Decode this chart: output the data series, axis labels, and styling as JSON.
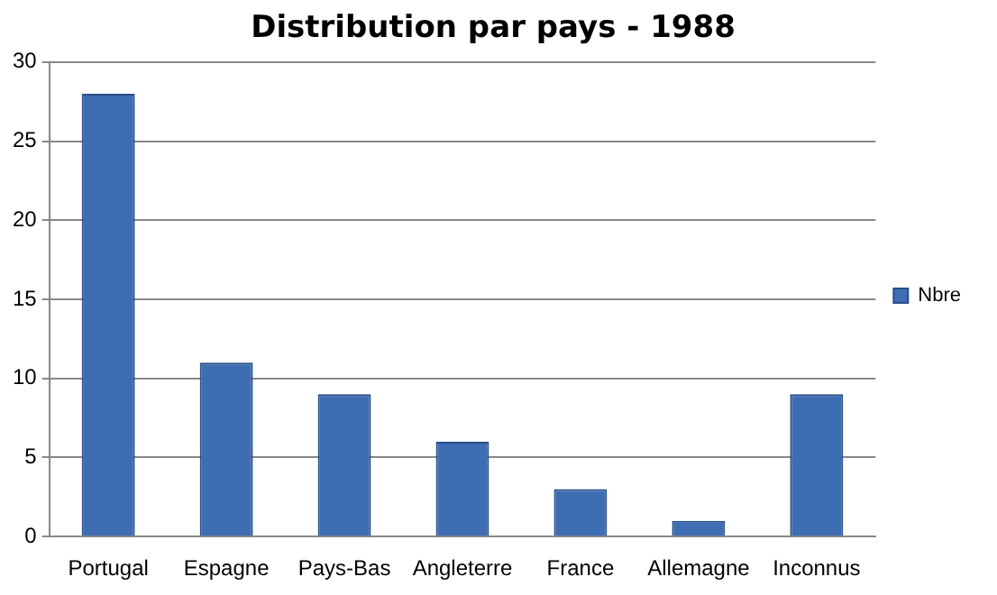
{
  "chart_data": {
    "type": "bar",
    "title": "Distribution par pays - 1988",
    "categories": [
      "Portugal",
      "Espagne",
      "Pays-Bas",
      "Angleterre",
      "France",
      "Allemagne",
      "Inconnus"
    ],
    "series": [
      {
        "name": "Nbre",
        "color": "#3f6db3",
        "values": [
          28,
          11,
          9,
          6,
          3,
          1,
          9
        ]
      }
    ],
    "ylim": [
      0,
      30
    ],
    "yticks": [
      0,
      5,
      10,
      15,
      20,
      25,
      30
    ],
    "grid": "y",
    "legend": "right"
  }
}
